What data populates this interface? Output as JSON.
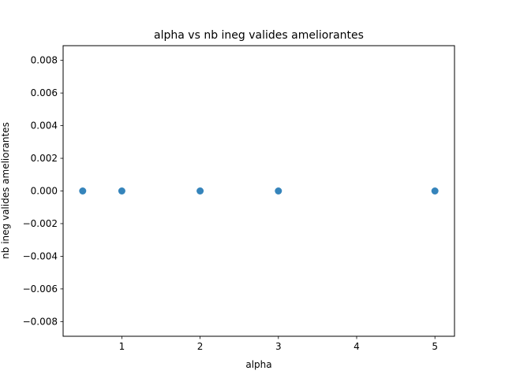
{
  "chart_data": {
    "type": "scatter",
    "title": "alpha   vs   nb ineg valides ameliorantes",
    "xlabel": "alpha",
    "ylabel": "nb ineg valides ameliorantes",
    "xlim": [
      0.25,
      5.25
    ],
    "ylim": [
      -0.0089,
      0.0089
    ],
    "xticks": [
      1,
      2,
      3,
      4,
      5
    ],
    "xtick_labels": [
      "1",
      "2",
      "3",
      "4",
      "5"
    ],
    "yticks": [
      -0.008,
      -0.006,
      -0.004,
      -0.002,
      0.0,
      0.002,
      0.004,
      0.006,
      0.008
    ],
    "ytick_labels": [
      "−0.008",
      "−0.006",
      "−0.004",
      "−0.002",
      "0.000",
      "0.002",
      "0.004",
      "0.006",
      "0.008"
    ],
    "grid": false,
    "color": "#1f77b4",
    "points": [
      {
        "x": 0.5,
        "y": 0
      },
      {
        "x": 1,
        "y": 0
      },
      {
        "x": 2,
        "y": 0
      },
      {
        "x": 3,
        "y": 0
      },
      {
        "x": 5,
        "y": 0
      }
    ]
  }
}
